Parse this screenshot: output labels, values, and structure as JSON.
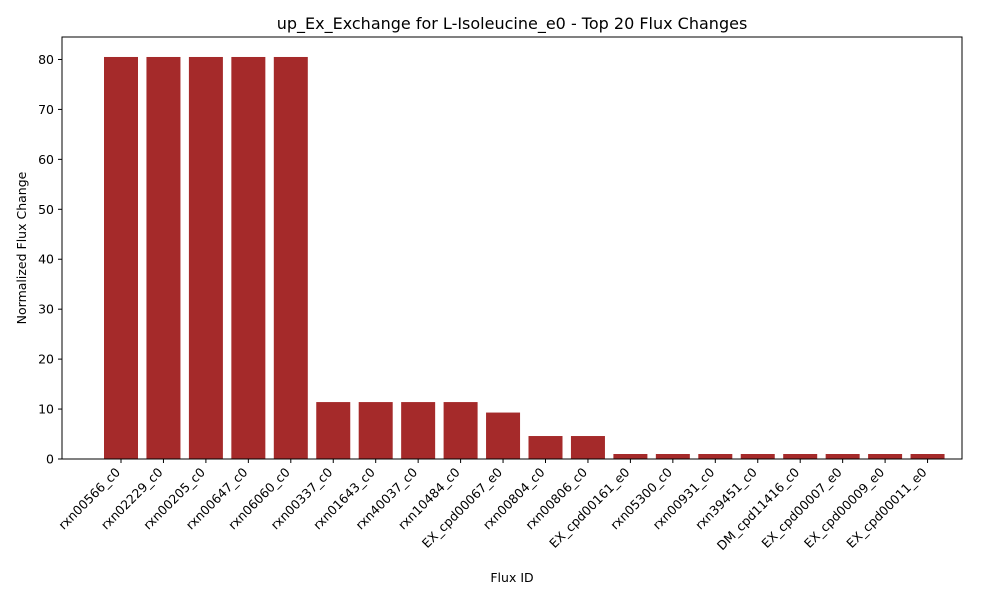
{
  "chart_data": {
    "type": "bar",
    "title": "up_Ex_Exchange for L-Isoleucine_e0 - Top 20 Flux Changes",
    "xlabel": "Flux ID",
    "ylabel": "Normalized Flux Change",
    "ylim": [
      0,
      84.5
    ],
    "yticks": [
      0,
      10,
      20,
      30,
      40,
      50,
      60,
      70,
      80
    ],
    "grid": false,
    "bar_color": "#a52a2a",
    "categories": [
      "rxn00566_c0",
      "rxn02229_c0",
      "rxn00205_c0",
      "rxn00647_c0",
      "rxn06060_c0",
      "rxn00337_c0",
      "rxn01643_c0",
      "rxn40037_c0",
      "rxn10484_c0",
      "EX_cpd00067_e0",
      "rxn00804_c0",
      "rxn00806_c0",
      "EX_cpd00161_e0",
      "rxn05300_c0",
      "rxn00931_c0",
      "rxn39451_c0",
      "DM_cpd11416_c0",
      "EX_cpd00007_e0",
      "EX_cpd00009_e0",
      "EX_cpd00011_e0"
    ],
    "values": [
      80.5,
      80.5,
      80.5,
      80.5,
      80.5,
      11.4,
      11.4,
      11.4,
      11.4,
      9.3,
      4.6,
      4.6,
      1.0,
      1.0,
      1.0,
      1.0,
      1.0,
      1.0,
      1.0,
      1.0
    ]
  }
}
